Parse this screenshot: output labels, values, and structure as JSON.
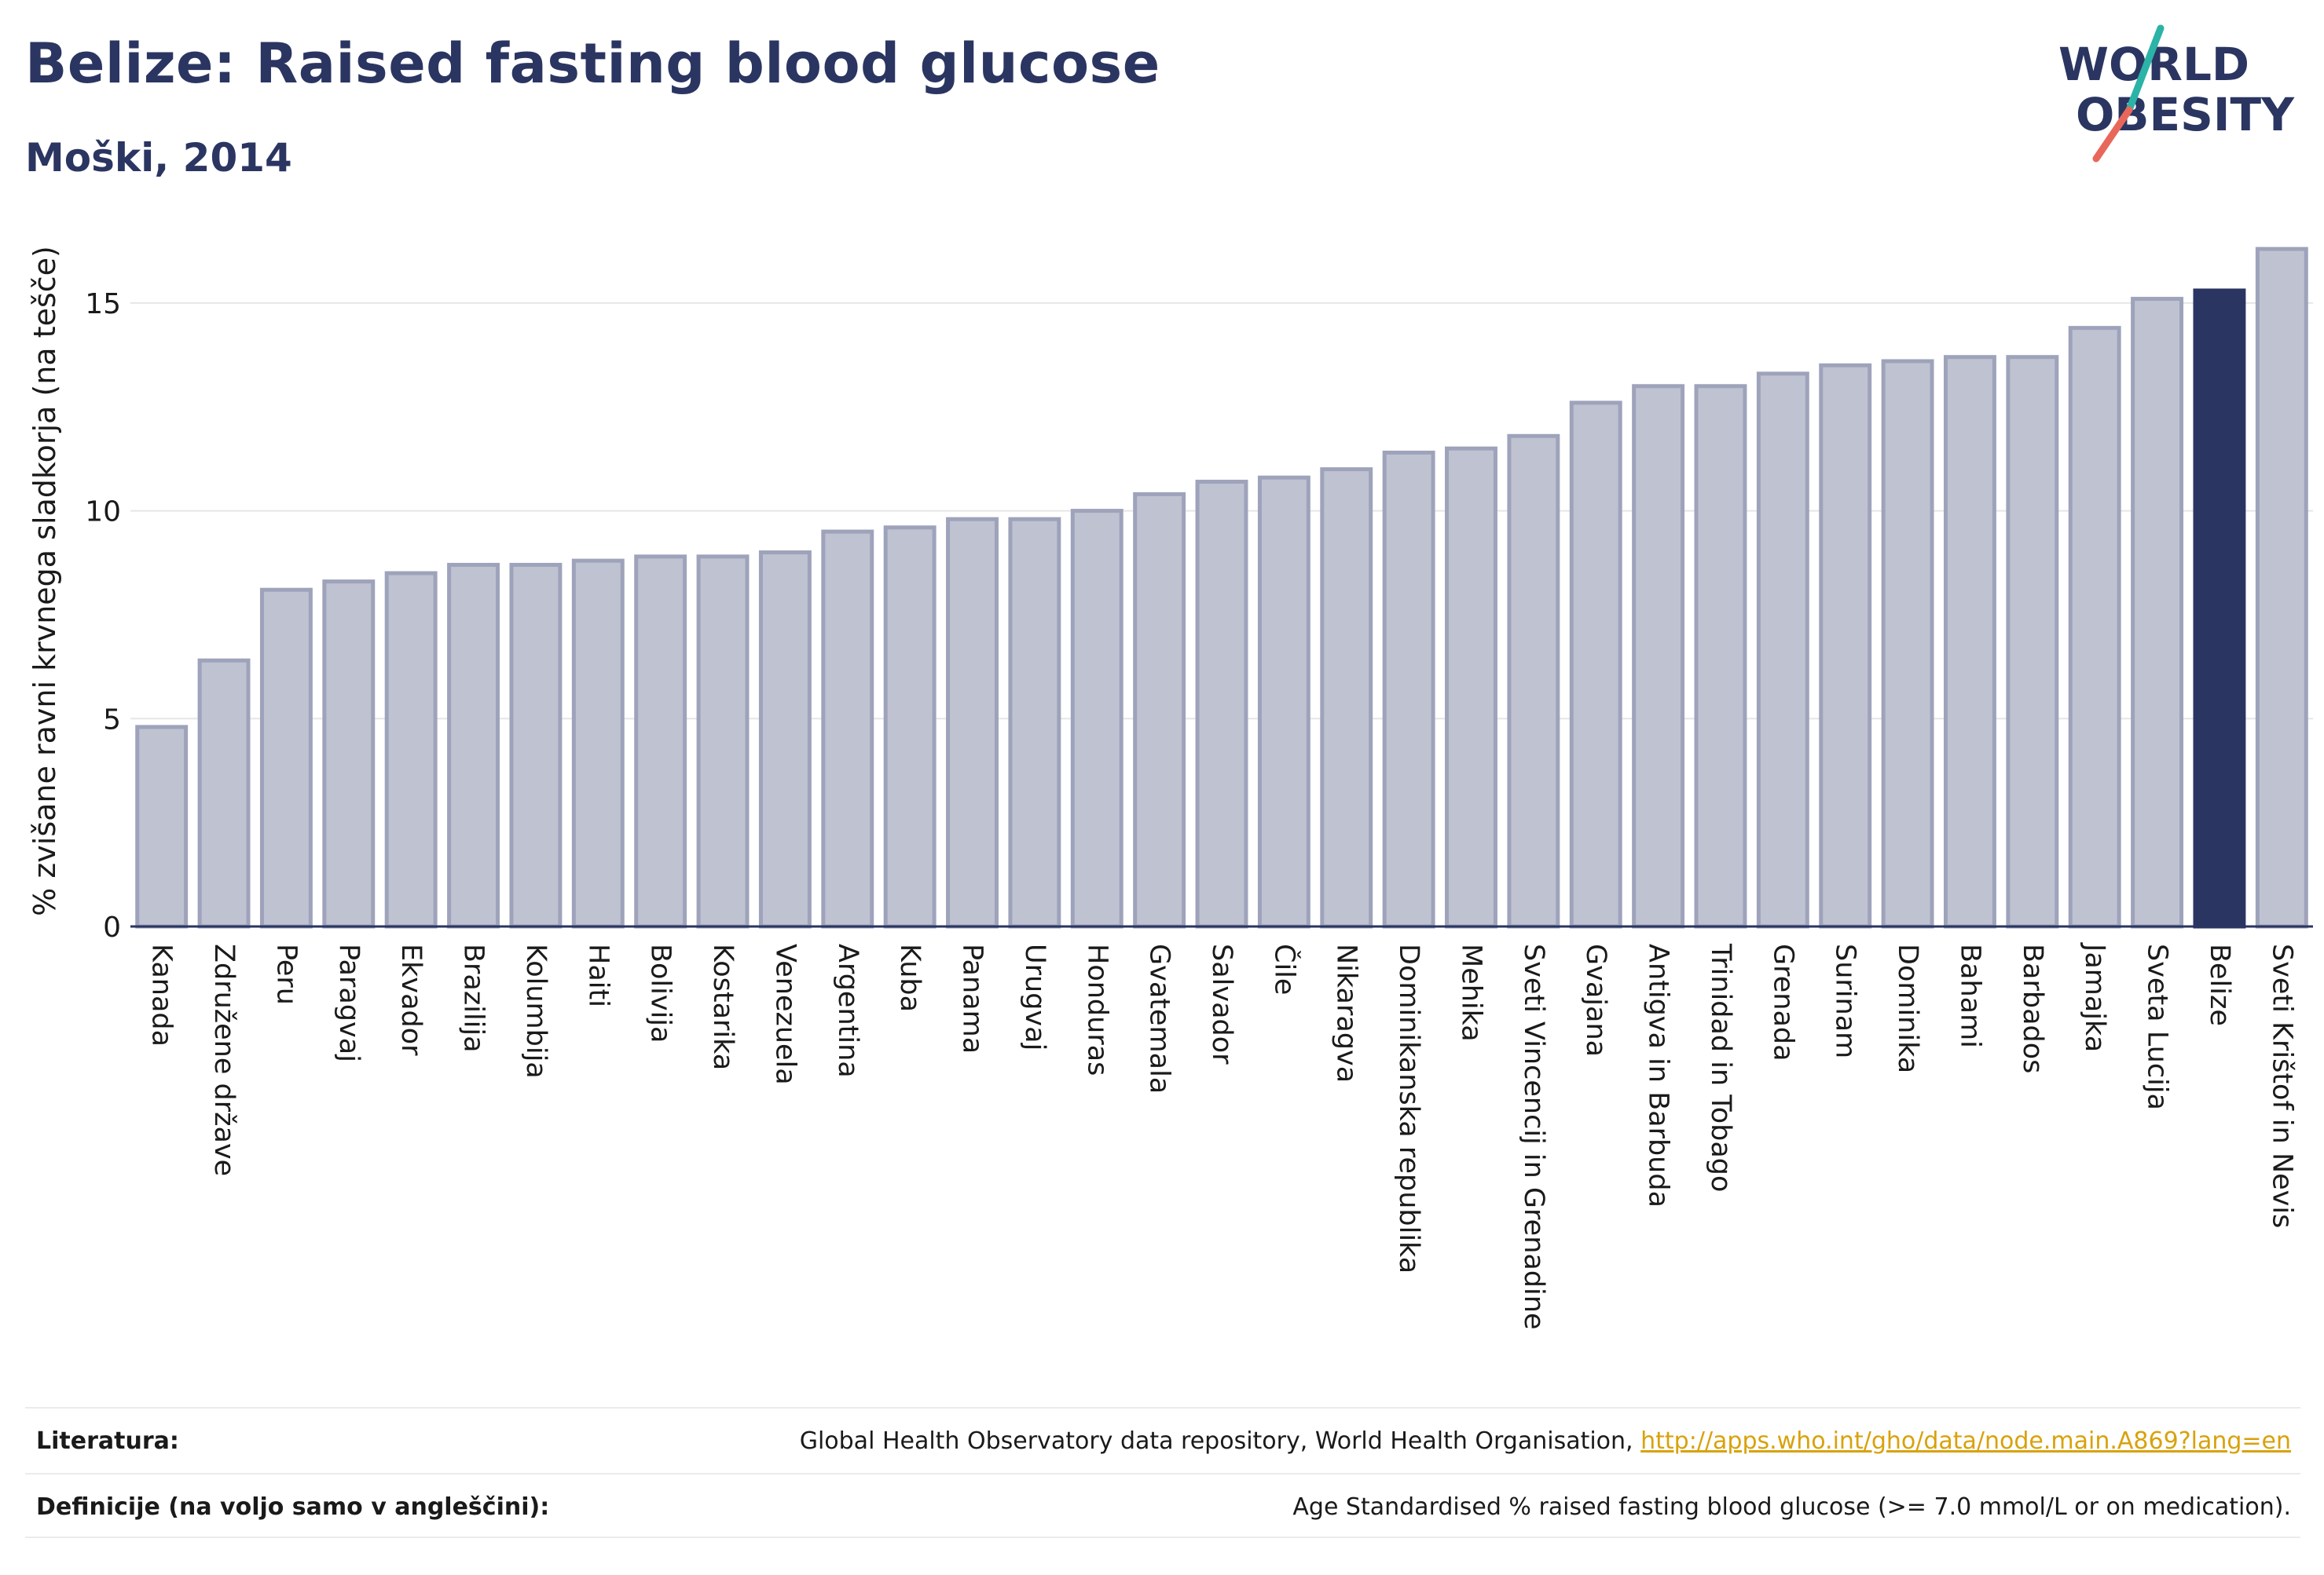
{
  "header": {
    "title": "Belize: Raised fasting blood glucose",
    "subtitle": "Moški, 2014"
  },
  "logo": {
    "line1": "WORLD",
    "line2": "OBESITY",
    "slash_colors": [
      "#2bb3a7",
      "#e8675a"
    ]
  },
  "colors": {
    "bar_default": "#bfc2d0",
    "bar_default_stroke": "#9ea3bb",
    "bar_highlight": "#2b3561",
    "text_dark": "#2b3561",
    "link": "#d8a20c",
    "grid": "#e6e6e6"
  },
  "chart_data": {
    "type": "bar",
    "ylabel": "% zvišane ravni krvnega sladkorja (na tešče)",
    "ylim": [
      0,
      17
    ],
    "yticks": [
      0,
      5,
      10,
      15
    ],
    "grid": true,
    "highlight": "Belize",
    "categories": [
      "Kanada",
      "Združene države",
      "Peru",
      "Paragvaj",
      "Ekvador",
      "Brazilija",
      "Kolumbija",
      "Haiti",
      "Bolivija",
      "Kostarika",
      "Venezuela",
      "Argentina",
      "Kuba",
      "Panama",
      "Urugvaj",
      "Honduras",
      "Gvatemala",
      "Salvador",
      "Čile",
      "Nikaragva",
      "Dominikanska republika",
      "Mehika",
      "Sveti Vincencij in Grenadine",
      "Gvajana",
      "Antigva in Barbuda",
      "Trinidad in Tobago",
      "Grenada",
      "Surinam",
      "Dominika",
      "Bahami",
      "Barbados",
      "Jamajka",
      "Sveta Lucija",
      "Belize",
      "Sveti Krištof in Nevis"
    ],
    "values": [
      4.8,
      6.4,
      8.1,
      8.3,
      8.5,
      8.7,
      8.7,
      8.8,
      8.9,
      8.9,
      9.0,
      9.5,
      9.6,
      9.8,
      9.8,
      10.0,
      10.4,
      10.7,
      10.8,
      11.0,
      11.4,
      11.5,
      11.8,
      12.6,
      13.0,
      13.0,
      13.3,
      13.5,
      13.6,
      13.7,
      13.7,
      14.4,
      15.1,
      15.3,
      16.3
    ]
  },
  "footer": {
    "references_label": "Literatura:",
    "references_text": "Global Health Observatory data repository, World Health Organisation,",
    "references_link": "http://apps.who.int/gho/data/node.main.A869?lang=en",
    "definitions_label": "Definicije (na voljo samo v angleščini):",
    "definitions_text": "Age Standardised % raised fasting blood glucose (>= 7.0 mmol/L or on medication)."
  }
}
